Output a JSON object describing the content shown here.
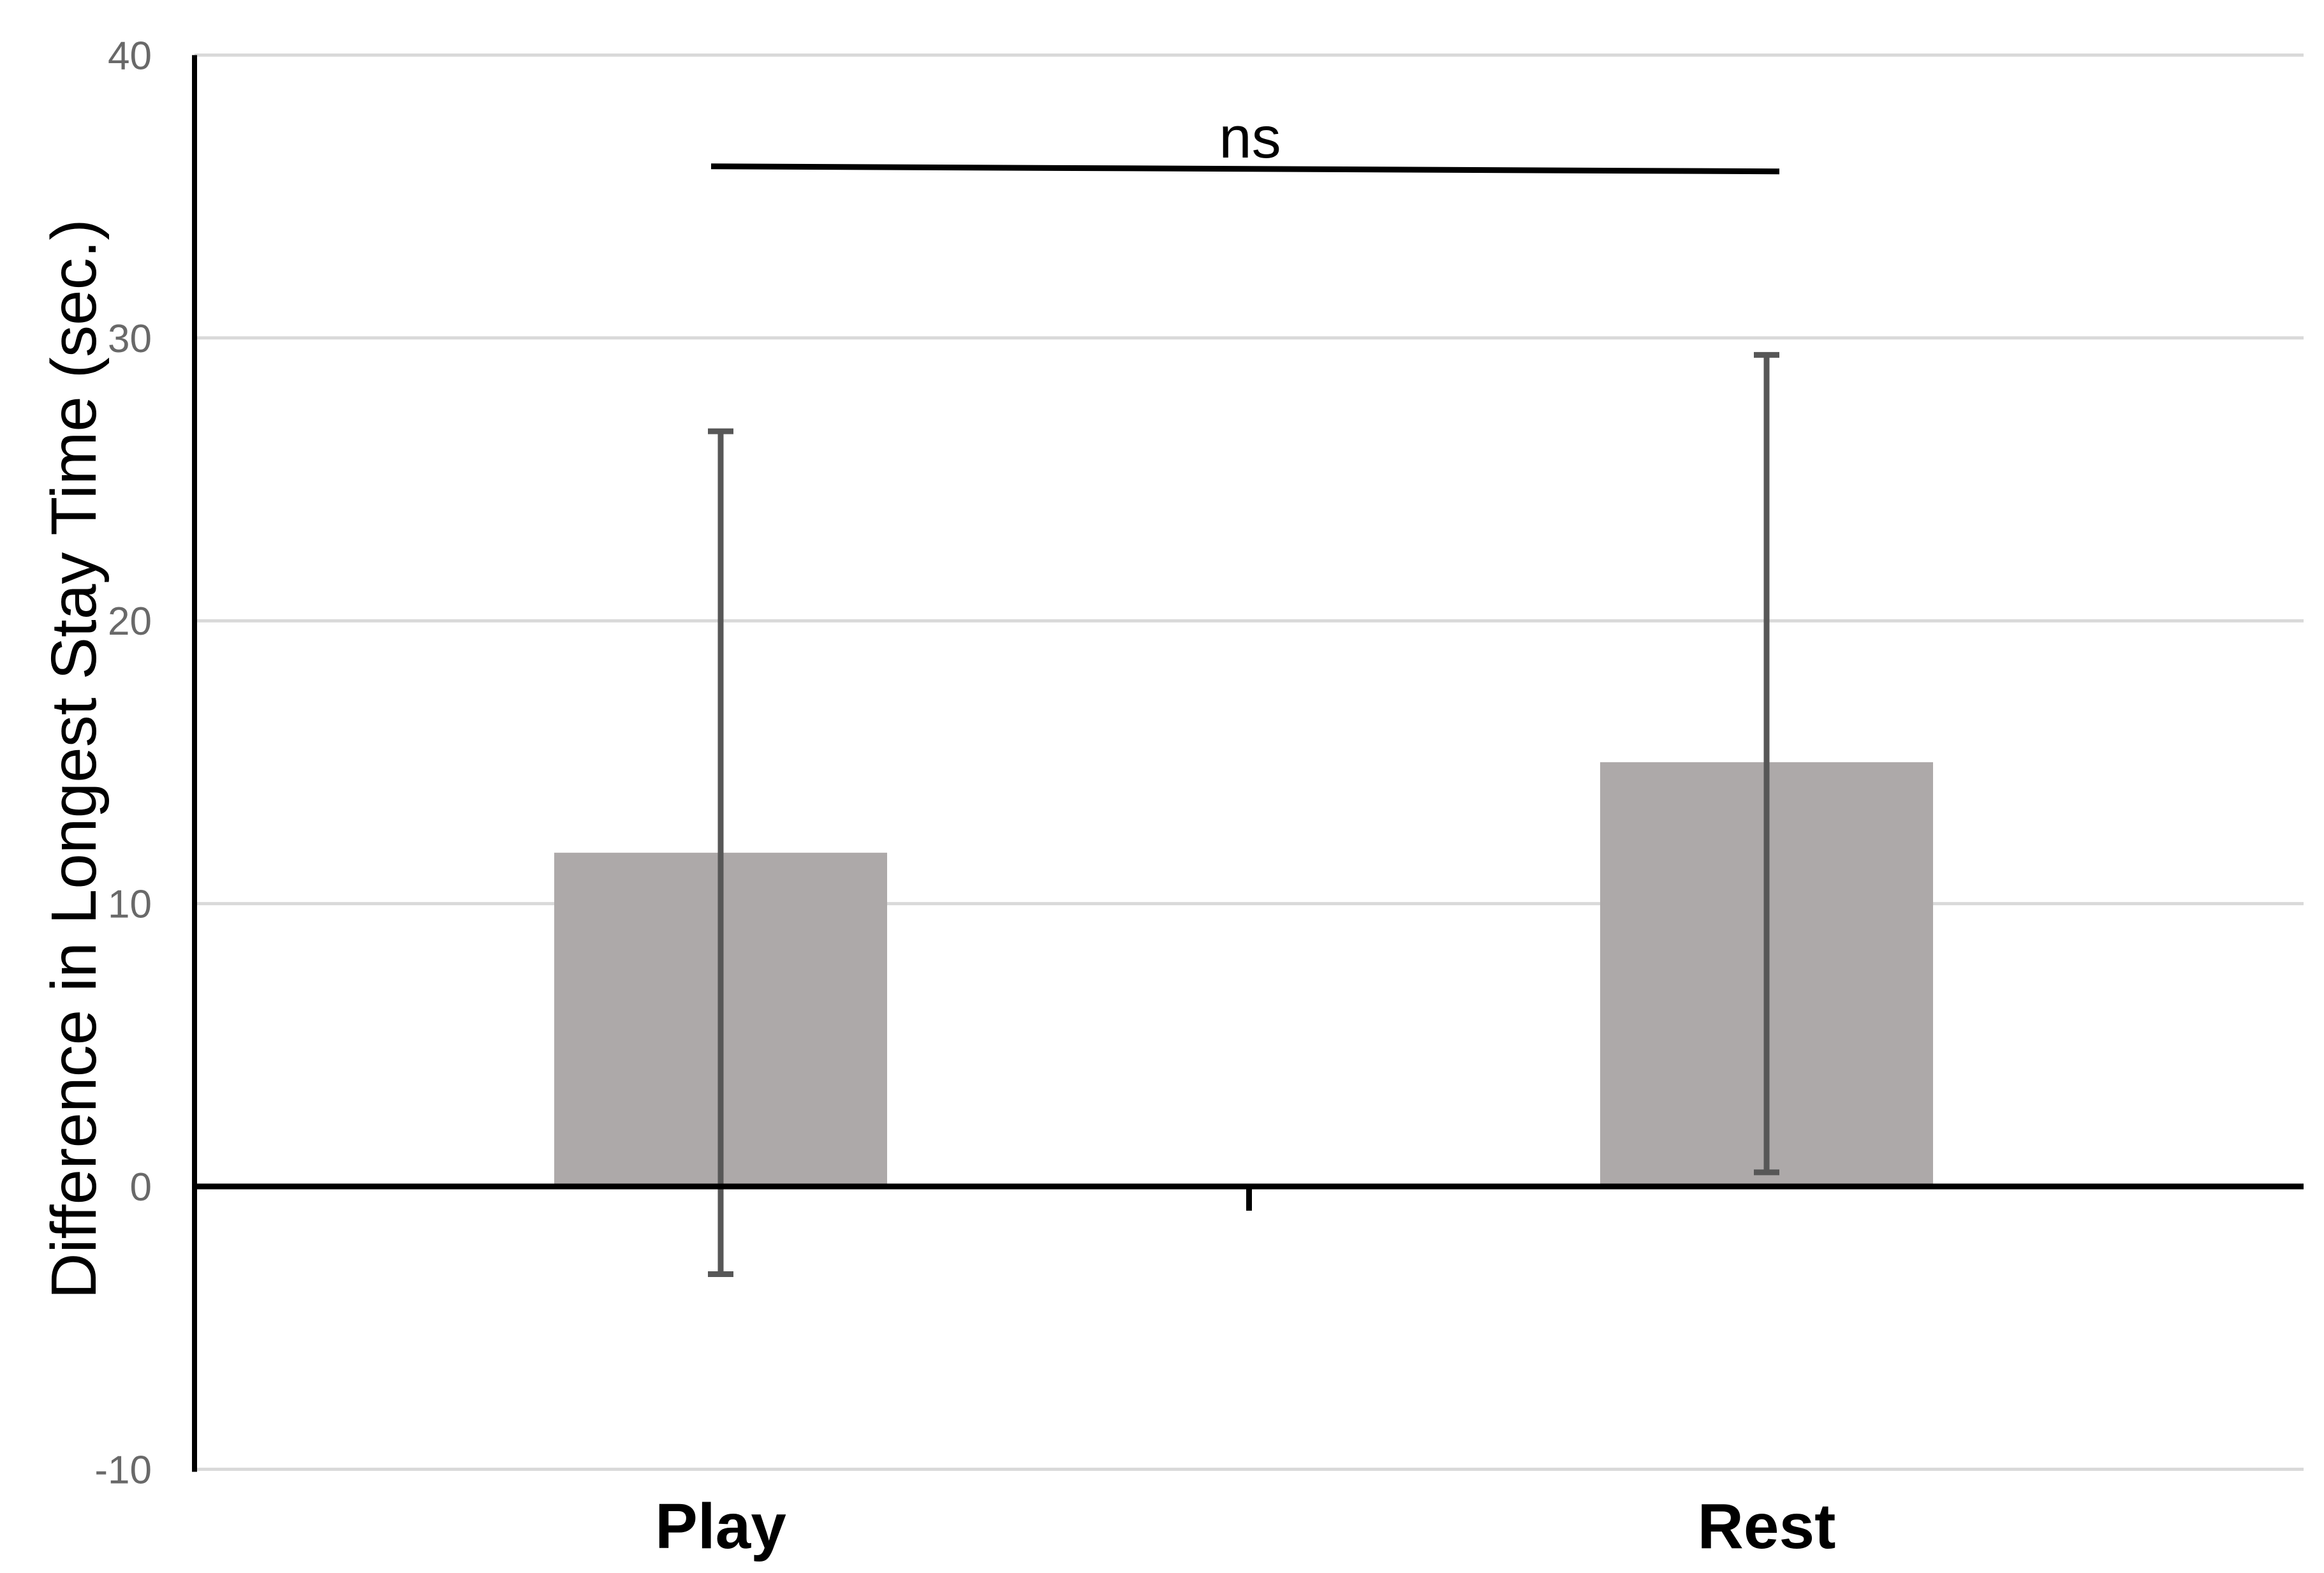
{
  "page": {
    "background": "#ffffff"
  },
  "chart_data": {
    "type": "bar",
    "title": "",
    "xlabel": "",
    "ylabel": "Difference in Longest Stay Time (sec.)",
    "categories": [
      "Play",
      "Rest"
    ],
    "values": [
      11.8,
      15.0
    ],
    "error_bars": {
      "upper": [
        26.7,
        29.4
      ],
      "lower": [
        -3.1,
        0.5
      ]
    },
    "ylim": [
      -10,
      40
    ],
    "ytick_values": [
      40,
      30,
      20,
      10,
      0,
      -10
    ],
    "ytick_labels": [
      "40",
      "30",
      "20",
      "10",
      "0",
      "-10"
    ],
    "grid": true,
    "legend_position": "none",
    "annotation": {
      "text": "ns",
      "spans_categories": [
        "Play",
        "Rest"
      ],
      "y": 36.0
    },
    "colors": {
      "bar_fill": "#ada9a9",
      "error_bar": "#575757",
      "gridline": "#d9d9d9",
      "axis_line": "#000000",
      "tick_label": "#696969",
      "text": "#000000"
    }
  }
}
